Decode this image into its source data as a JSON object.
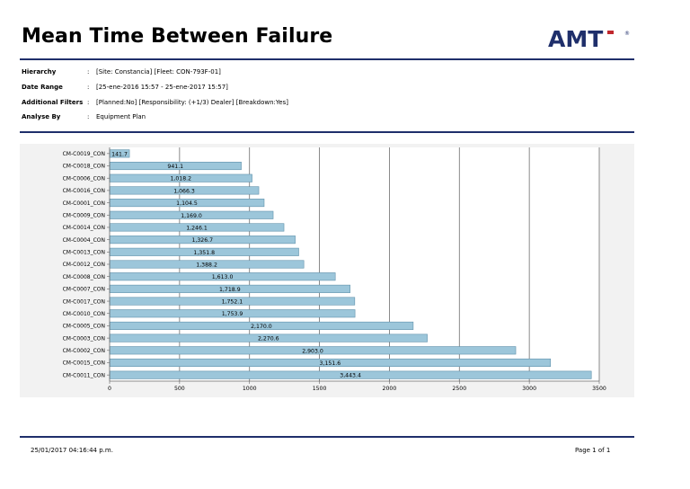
{
  "report": {
    "title": "Mean Time Between Failure",
    "logo_text": "AMT",
    "logo_mark": "®",
    "brand_color": "#1f2f6b",
    "logo_dot_color": "#c0272d"
  },
  "filters": [
    {
      "label": "Hierarchy",
      "colon": ":",
      "value": "[Site: Constancia] [Fleet: CON-793F-01]"
    },
    {
      "label": "Date Range",
      "colon": ":",
      "value": "[25-ene-2016 15:57 - 25-ene-2017 15:57]"
    },
    {
      "label": "Additional Filters",
      "colon": ":",
      "value": "[Planned:No] [Responsibility: (+1/3) Dealer] [Breakdown:Yes]"
    },
    {
      "label": "Analyse By",
      "colon": ":",
      "value": "Equipment Plan"
    }
  ],
  "chart_data": {
    "type": "bar",
    "orientation": "horizontal",
    "categories": [
      "CM-C0019_CON",
      "CM-C0018_CON",
      "CM-C0006_CON",
      "CM-C0016_CON",
      "CM-C0001_CON",
      "CM-C0009_CON",
      "CM-C0014_CON",
      "CM-C0004_CON",
      "CM-C0013_CON",
      "CM-C0012_CON",
      "CM-C0008_CON",
      "CM-C0007_CON",
      "CM-C0017_CON",
      "CM-C0010_CON",
      "CM-C0005_CON",
      "CM-C0003_CON",
      "CM-C0002_CON",
      "CM-C0015_CON",
      "CM-C0011_CON"
    ],
    "values": [
      141.7,
      941.1,
      1018.2,
      1066.3,
      1104.5,
      1169.0,
      1246.1,
      1326.7,
      1351.8,
      1388.2,
      1613.0,
      1718.9,
      1752.1,
      1753.9,
      2170.0,
      2270.6,
      2903.0,
      3151.6,
      3443.4
    ],
    "value_labels": [
      "141.7",
      "941.1",
      "1,018.2",
      "1,066.3",
      "1,104.5",
      "1,169.0",
      "1,246.1",
      "1,326.7",
      "1,351.8",
      "1,388.2",
      "1,613.0",
      "1,718.9",
      "1,752.1",
      "1,753.9",
      "2,170.0",
      "2,270.6",
      "2,903.0",
      "3,151.6",
      "3,443.4"
    ],
    "x_ticks": [
      0,
      500,
      1000,
      1500,
      2000,
      2500,
      3000,
      3500
    ],
    "xlim": [
      0,
      3500
    ],
    "grid": true,
    "colors": {
      "bar": "#9cc6da",
      "bar_edge": "#5f91ab",
      "grid": "#6e6e6e",
      "axis": "#666666"
    }
  },
  "footer": {
    "printed": "25/01/2017 04:16:44 p.m.",
    "page": "Page 1 of 1"
  }
}
